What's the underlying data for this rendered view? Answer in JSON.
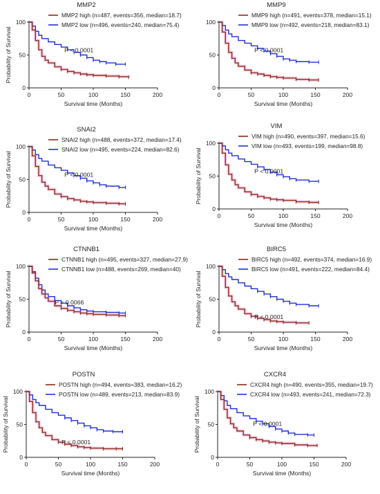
{
  "chart_data": [
    {
      "type": "line",
      "title": "MMP2",
      "xlabel": "Survival time (Months)",
      "ylabel": "Probability of Survival",
      "xlim": [
        0,
        200
      ],
      "ylim": [
        0,
        100
      ],
      "xticks": [
        0,
        50,
        100,
        150,
        200
      ],
      "yticks": [
        0,
        50,
        100
      ],
      "annotation": "P < 0.0001",
      "legend_position": "top-right",
      "series": [
        {
          "name": "MMP2 high (n=487, events=356, median=18.7)",
          "color": "#8B2A14",
          "x": [
            0,
            5,
            10,
            15,
            20,
            25,
            30,
            40,
            50,
            60,
            70,
            80,
            90,
            100,
            120,
            140,
            155
          ],
          "y": [
            100,
            88,
            72,
            58,
            48,
            42,
            38,
            32,
            28,
            25,
            23,
            21,
            20,
            19,
            18,
            17,
            16
          ]
        },
        {
          "name": "MMP2 low (n=496, events=240, median=75.4)",
          "color": "#1F2FD6",
          "x": [
            0,
            5,
            10,
            15,
            20,
            30,
            40,
            50,
            60,
            70,
            80,
            90,
            100,
            110,
            120,
            135,
            150
          ],
          "y": [
            100,
            94,
            86,
            80,
            75,
            70,
            66,
            62,
            58,
            54,
            50,
            46,
            42,
            40,
            38,
            36,
            36
          ]
        }
      ]
    },
    {
      "type": "line",
      "title": "MMP9",
      "xlabel": "Survival time (Months)",
      "ylabel": "",
      "xlim": [
        0,
        200
      ],
      "ylim": [
        0,
        100
      ],
      "xticks": [
        0,
        50,
        100,
        150,
        200
      ],
      "yticks": [
        0,
        50,
        100
      ],
      "annotation": "P < 0.0001",
      "legend_position": "top-right",
      "series": [
        {
          "name": "MMP9 high (n=491, events=378, median=15.1)",
          "color": "#8B2A14",
          "x": [
            0,
            5,
            10,
            15,
            20,
            25,
            30,
            40,
            50,
            60,
            70,
            80,
            90,
            100,
            120,
            140,
            155
          ],
          "y": [
            100,
            85,
            68,
            54,
            45,
            38,
            33,
            27,
            23,
            21,
            19,
            17,
            16,
            15,
            13,
            12,
            12
          ]
        },
        {
          "name": "MMP9 low (n=492, events=218, median=83.1)",
          "color": "#1F2FD6",
          "x": [
            0,
            5,
            10,
            15,
            20,
            30,
            40,
            50,
            60,
            70,
            80,
            90,
            100,
            110,
            120,
            140,
            155
          ],
          "y": [
            100,
            95,
            88,
            82,
            78,
            72,
            68,
            64,
            60,
            56,
            52,
            48,
            44,
            42,
            40,
            39,
            39
          ]
        }
      ]
    },
    {
      "type": "line",
      "title": "SNAI2",
      "xlabel": "Survival time (Months)",
      "ylabel": "Probability of Survival",
      "xlim": [
        0,
        200
      ],
      "ylim": [
        0,
        100
      ],
      "xticks": [
        0,
        50,
        100,
        150,
        200
      ],
      "yticks": [
        0,
        50,
        100
      ],
      "annotation": "P < 0.0001",
      "legend_position": "top-right",
      "series": [
        {
          "name": "SNAI2 high (n=488, events=372, median=17.4)",
          "color": "#8B2A14",
          "x": [
            0,
            5,
            10,
            15,
            20,
            25,
            30,
            40,
            50,
            60,
            70,
            80,
            90,
            100,
            120,
            140,
            150
          ],
          "y": [
            100,
            86,
            70,
            56,
            46,
            40,
            35,
            28,
            24,
            21,
            19,
            17,
            16,
            15,
            14,
            13,
            13
          ]
        },
        {
          "name": "SNAI2 low (n=495, events=224, median=82.6)",
          "color": "#1F2FD6",
          "x": [
            0,
            5,
            10,
            15,
            20,
            30,
            40,
            50,
            60,
            70,
            80,
            90,
            100,
            110,
            120,
            140,
            150
          ],
          "y": [
            100,
            95,
            88,
            82,
            78,
            72,
            68,
            64,
            60,
            56,
            52,
            48,
            45,
            42,
            40,
            38,
            38
          ]
        }
      ]
    },
    {
      "type": "line",
      "title": "VIM",
      "xlabel": "Survival time (Months)",
      "ylabel": "Probability of Survival",
      "xlim": [
        0,
        200
      ],
      "ylim": [
        0,
        100
      ],
      "xticks": [
        0,
        50,
        100,
        150,
        200
      ],
      "yticks": [
        0,
        50,
        100
      ],
      "annotation": "P < 0.0001",
      "legend_position": "top-right",
      "series": [
        {
          "name": "VIM high (n=490, events=397, median=15.6)",
          "color": "#8B2A14",
          "x": [
            0,
            5,
            10,
            15,
            20,
            25,
            30,
            40,
            50,
            60,
            70,
            80,
            90,
            100,
            120,
            140,
            155
          ],
          "y": [
            100,
            85,
            67,
            53,
            44,
            37,
            32,
            26,
            22,
            19,
            17,
            15,
            14,
            13,
            11,
            10,
            10
          ]
        },
        {
          "name": "VIM low (n=493, events=199, median=98.8)",
          "color": "#1F2FD6",
          "x": [
            0,
            5,
            10,
            15,
            20,
            30,
            40,
            50,
            60,
            70,
            80,
            90,
            100,
            110,
            120,
            140,
            155
          ],
          "y": [
            100,
            96,
            90,
            85,
            81,
            76,
            72,
            68,
            64,
            60,
            56,
            52,
            49,
            46,
            44,
            42,
            42
          ]
        }
      ]
    },
    {
      "type": "line",
      "title": "CTNNB1",
      "xlabel": "Survival time (Months)",
      "ylabel": "Probability of Survival",
      "xlim": [
        0,
        200
      ],
      "ylim": [
        0,
        100
      ],
      "xticks": [
        0,
        50,
        100,
        150,
        200
      ],
      "yticks": [
        0,
        50,
        100
      ],
      "annotation": "P = 0.0066",
      "legend_position": "top-right",
      "series": [
        {
          "name": "CTNNB1 high (n=495, events=327, median=27.9)",
          "color": "#8B2A14",
          "x": [
            0,
            5,
            10,
            15,
            20,
            25,
            30,
            40,
            50,
            60,
            70,
            80,
            90,
            100,
            120,
            140,
            150
          ],
          "y": [
            100,
            90,
            78,
            66,
            58,
            52,
            47,
            40,
            36,
            33,
            31,
            29,
            28,
            27,
            26,
            25,
            25
          ]
        },
        {
          "name": "CTNNB1 low (n=488, events=269, median=40)",
          "color": "#1F2FD6",
          "x": [
            0,
            5,
            10,
            15,
            20,
            25,
            30,
            40,
            50,
            60,
            70,
            80,
            90,
            100,
            120,
            140,
            150
          ],
          "y": [
            100,
            92,
            82,
            72,
            64,
            58,
            54,
            48,
            44,
            40,
            37,
            34,
            32,
            31,
            30,
            29,
            29
          ]
        }
      ]
    },
    {
      "type": "line",
      "title": "BIRC5",
      "xlabel": "Survival time (Months)",
      "ylabel": "Probability of Survival",
      "xlim": [
        0,
        200
      ],
      "ylim": [
        0,
        100
      ],
      "xticks": [
        0,
        50,
        100,
        150,
        200
      ],
      "yticks": [
        0,
        50,
        100
      ],
      "annotation": "P < 0.0001",
      "legend_position": "top-right",
      "series": [
        {
          "name": "BIRC5 high (n=492, events=374, median=16.9)",
          "color": "#8B2A14",
          "x": [
            0,
            5,
            10,
            15,
            20,
            25,
            30,
            40,
            50,
            60,
            70,
            80,
            90,
            100,
            120,
            140
          ],
          "y": [
            100,
            85,
            68,
            55,
            46,
            40,
            35,
            28,
            24,
            21,
            19,
            17,
            16,
            15,
            14,
            14
          ]
        },
        {
          "name": "BIRC5 low (n=491, events=222, median=84.4)",
          "color": "#1F2FD6",
          "x": [
            0,
            5,
            10,
            15,
            20,
            30,
            40,
            50,
            60,
            70,
            80,
            90,
            100,
            110,
            120,
            140,
            155
          ],
          "y": [
            100,
            95,
            89,
            84,
            80,
            75,
            70,
            66,
            62,
            58,
            54,
            50,
            47,
            44,
            42,
            40,
            40
          ]
        }
      ]
    },
    {
      "type": "line",
      "title": "POSTN",
      "xlabel": "Survival time (Months)",
      "ylabel": "Probability of Survival",
      "xlim": [
        0,
        200
      ],
      "ylim": [
        0,
        100
      ],
      "xticks": [
        0,
        50,
        100,
        150,
        200
      ],
      "yticks": [
        0,
        50,
        100
      ],
      "annotation": "P < 0.0001",
      "legend_position": "top-right",
      "series": [
        {
          "name": "POSTN high (n=494, events=383, median=16.2)",
          "color": "#8B2A14",
          "x": [
            0,
            5,
            10,
            15,
            20,
            25,
            30,
            40,
            50,
            60,
            70,
            80,
            90,
            100,
            120,
            140,
            150
          ],
          "y": [
            100,
            85,
            68,
            54,
            45,
            38,
            33,
            27,
            23,
            20,
            18,
            16,
            15,
            14,
            13,
            13,
            13
          ]
        },
        {
          "name": "POSTN low (n=489, events=213, median=83.9)",
          "color": "#1F2FD6",
          "x": [
            0,
            5,
            10,
            15,
            20,
            30,
            40,
            50,
            60,
            70,
            80,
            90,
            100,
            110,
            120,
            135,
            150
          ],
          "y": [
            100,
            95,
            88,
            83,
            79,
            73,
            68,
            64,
            60,
            56,
            52,
            48,
            45,
            42,
            40,
            39,
            39
          ]
        }
      ]
    },
    {
      "type": "line",
      "title": "CXCR4",
      "xlabel": "Survival time (Months)",
      "ylabel": "Probability of Survival",
      "xlim": [
        0,
        200
      ],
      "ylim": [
        0,
        100
      ],
      "xticks": [
        0,
        50,
        100,
        150,
        200
      ],
      "yticks": [
        0,
        50,
        100
      ],
      "annotation": "P < 0.0001",
      "legend_position": "top-right",
      "series": [
        {
          "name": "CXCR4 high (n=490, events=355, median=19.7)",
          "color": "#8B2A14",
          "x": [
            0,
            5,
            10,
            15,
            20,
            25,
            30,
            40,
            50,
            60,
            70,
            80,
            90,
            100,
            120,
            140,
            155
          ],
          "y": [
            100,
            88,
            73,
            60,
            51,
            45,
            40,
            34,
            30,
            27,
            25,
            23,
            22,
            21,
            19,
            18,
            18
          ]
        },
        {
          "name": "CXCR4 low (n=493, events=241, median=72.3)",
          "color": "#1F2FD6",
          "x": [
            0,
            5,
            10,
            15,
            20,
            30,
            40,
            50,
            60,
            70,
            80,
            90,
            100,
            110,
            120,
            140,
            150
          ],
          "y": [
            100,
            94,
            86,
            79,
            74,
            68,
            63,
            59,
            55,
            51,
            47,
            43,
            40,
            37,
            35,
            34,
            34
          ]
        }
      ]
    }
  ]
}
